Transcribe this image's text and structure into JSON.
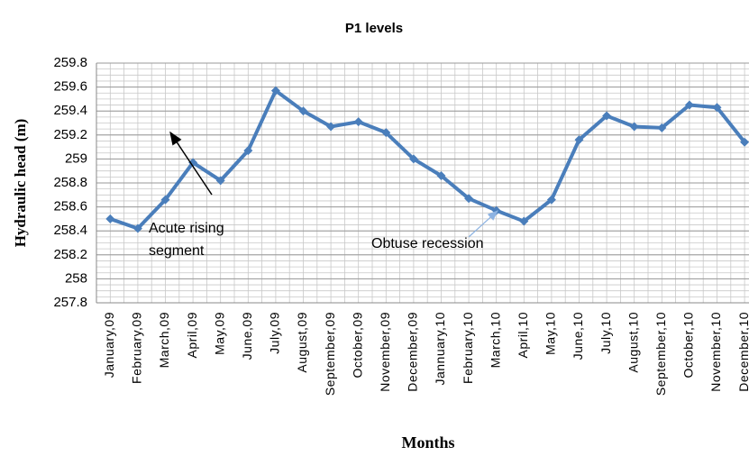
{
  "chart_data": {
    "type": "line",
    "title": "P1 levels",
    "x_label": "Months",
    "y_label": "Hydraulic head (m)",
    "categories": [
      "January,09",
      "February,09",
      "March,09",
      "April,09",
      "May,09",
      "June,09",
      "July,09",
      "August,09",
      "September,09",
      "October,09",
      "November,09",
      "December,09",
      "Jannuary,10",
      "February,10",
      "March,10",
      "April,10",
      "May,10",
      "June,10",
      "July,10",
      "August,10",
      "September,10",
      "October,10",
      "November,10",
      "December,10"
    ],
    "series": [
      {
        "name": "P1",
        "color": "#4a7ebb",
        "values": [
          258.5,
          258.42,
          258.66,
          258.97,
          258.82,
          259.07,
          259.57,
          259.4,
          259.27,
          259.31,
          259.22,
          259.0,
          258.86,
          258.67,
          258.57,
          258.48,
          258.66,
          259.16,
          259.36,
          259.27,
          259.26,
          259.45,
          259.43,
          259.14
        ]
      }
    ],
    "ylim": [
      257.8,
      259.8
    ],
    "yticks": [
      257.8,
      258,
      258.2,
      258.4,
      258.6,
      258.8,
      259,
      259.2,
      259.4,
      259.6,
      259.8
    ],
    "grid": true,
    "annotations": [
      {
        "lines": [
          "Acute rising",
          "segment"
        ]
      },
      {
        "lines": [
          "Obtuse recession"
        ]
      }
    ]
  }
}
